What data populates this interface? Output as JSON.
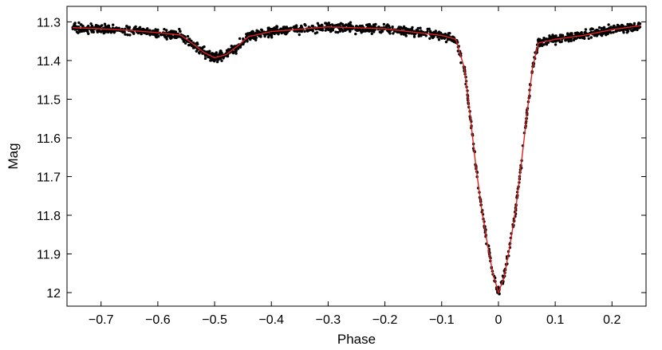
{
  "chart_data": {
    "type": "scatter",
    "title": "",
    "xlabel": "Phase",
    "ylabel": "Mag",
    "xlim": [
      -0.76,
      0.26
    ],
    "ylim": [
      12.035,
      11.26
    ],
    "y_inverted": true,
    "grid": false,
    "legend": "none",
    "x_ticks": [
      -0.7,
      -0.6,
      -0.5,
      -0.4,
      -0.3,
      -0.2,
      -0.1,
      0,
      0.1,
      0.2
    ],
    "x_tick_labels": [
      "−0.7",
      "−0.6",
      "−0.5",
      "−0.4",
      "−0.3",
      "−0.2",
      "−0.1",
      "0",
      "0.1",
      "0.2"
    ],
    "y_ticks": [
      11.3,
      11.4,
      11.5,
      11.6,
      11.7,
      11.8,
      11.9,
      12
    ],
    "y_tick_labels": [
      "11.3",
      "11.4",
      "11.5",
      "11.6",
      "11.7",
      "11.8",
      "11.9",
      "12"
    ],
    "series": [
      {
        "kind": "observed points",
        "color": "#000000",
        "x_range": [
          -0.75,
          0.25
        ],
        "x": [
          -0.75,
          -0.7,
          -0.65,
          -0.6,
          -0.56,
          -0.54,
          -0.52,
          -0.5,
          -0.48,
          -0.46,
          -0.44,
          -0.4,
          -0.3,
          -0.2,
          -0.1,
          -0.075,
          -0.06,
          -0.05,
          -0.04,
          -0.03,
          -0.02,
          -0.01,
          0,
          0.01,
          0.02,
          0.03,
          0.04,
          0.05,
          0.06,
          0.07,
          0.1,
          0.15,
          0.2,
          0.25
        ],
        "y": [
          11.315,
          11.318,
          11.322,
          11.328,
          11.334,
          11.355,
          11.378,
          11.393,
          11.385,
          11.363,
          11.338,
          11.325,
          11.313,
          11.318,
          11.335,
          11.345,
          11.42,
          11.54,
          11.67,
          11.78,
          11.87,
          11.95,
          12.0,
          11.96,
          11.88,
          11.79,
          11.67,
          11.54,
          11.42,
          11.355,
          11.345,
          11.335,
          11.32,
          11.31
        ],
        "scatter": 0.008
      },
      {
        "kind": "model fit",
        "color": "#e02020",
        "x": [
          -0.75,
          -0.7,
          -0.65,
          -0.6,
          -0.56,
          -0.54,
          -0.52,
          -0.5,
          -0.48,
          -0.46,
          -0.44,
          -0.4,
          -0.3,
          -0.2,
          -0.1,
          -0.075,
          -0.06,
          -0.05,
          -0.04,
          -0.03,
          -0.02,
          -0.01,
          0,
          0.01,
          0.02,
          0.03,
          0.04,
          0.05,
          0.06,
          0.07,
          0.1,
          0.15,
          0.2,
          0.25
        ],
        "y": [
          11.315,
          11.318,
          11.322,
          11.328,
          11.334,
          11.355,
          11.378,
          11.393,
          11.385,
          11.363,
          11.338,
          11.325,
          11.313,
          11.318,
          11.335,
          11.345,
          11.42,
          11.54,
          11.67,
          11.78,
          11.87,
          11.95,
          12.0,
          11.96,
          11.88,
          11.79,
          11.67,
          11.54,
          11.42,
          11.355,
          11.345,
          11.335,
          11.32,
          11.31
        ]
      }
    ]
  }
}
